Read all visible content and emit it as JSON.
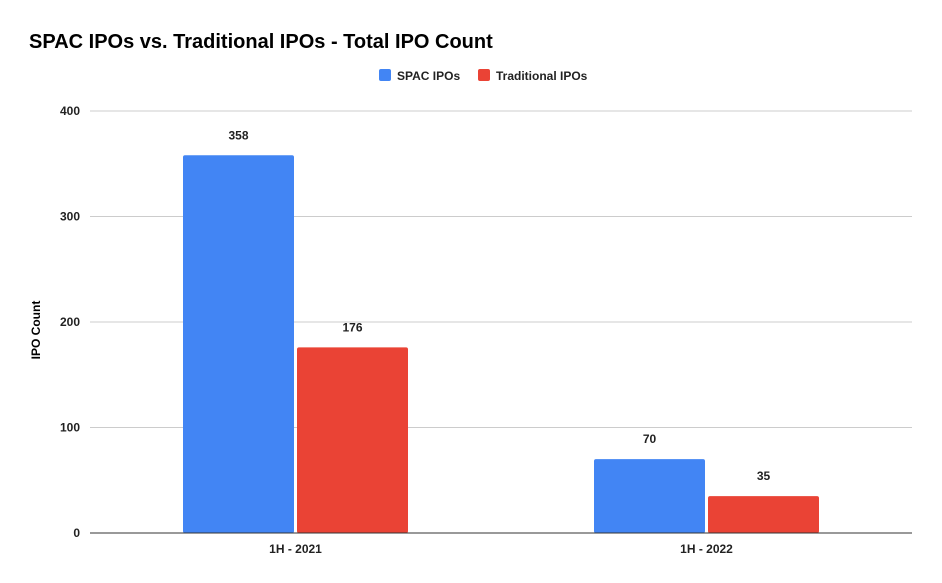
{
  "chart_data": {
    "type": "bar",
    "title": "SPAC IPOs vs. Traditional IPOs - Total IPO Count",
    "xlabel": "",
    "ylabel": "IPO Count",
    "categories": [
      "1H - 2021",
      "1H - 2022"
    ],
    "series": [
      {
        "name": "SPAC IPOs",
        "color": "#4285f4",
        "values": [
          358,
          70
        ]
      },
      {
        "name": "Traditional IPOs",
        "color": "#ea4335",
        "values": [
          176,
          35
        ]
      }
    ],
    "ylim": [
      0,
      400
    ],
    "yticks": [
      0,
      100,
      200,
      300,
      400
    ],
    "grid": true,
    "legend": "top-center",
    "data_labels": true
  }
}
